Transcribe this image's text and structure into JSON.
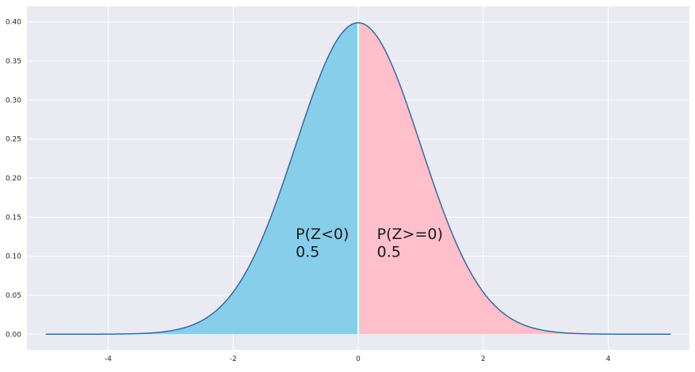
{
  "chart_data": {
    "type": "area",
    "title": "",
    "xlabel": "",
    "ylabel": "",
    "xlim": [
      -5.3,
      5.3
    ],
    "ylim": [
      -0.02,
      0.42
    ],
    "grid": true,
    "x_ticks": [
      -4,
      -2,
      0,
      2,
      4
    ],
    "x_tick_labels": [
      "-4",
      "-2",
      "0",
      "2",
      "4"
    ],
    "y_ticks": [
      0.0,
      0.05,
      0.1,
      0.15,
      0.2,
      0.25,
      0.3,
      0.35,
      0.4
    ],
    "y_tick_labels": [
      "0.00",
      "0.05",
      "0.10",
      "0.15",
      "0.20",
      "0.25",
      "0.30",
      "0.35",
      "0.40"
    ],
    "series": [
      {
        "distribution": "standard normal pdf",
        "x_range": [
          -5,
          5
        ],
        "color": "#2b6ca8"
      }
    ],
    "regions": [
      {
        "x_from": -5,
        "x_to": 0,
        "color": "#87ceeb"
      },
      {
        "x_from": 0,
        "x_to": 5,
        "color": "#ffc0cb"
      }
    ],
    "divider": {
      "x": 0,
      "color": "#ffffff"
    },
    "annotations": [
      {
        "x": -1.0,
        "y": 0.122,
        "text": "P(Z<0)"
      },
      {
        "x": -1.0,
        "y": 0.099,
        "text": "0.5"
      },
      {
        "x": 0.3,
        "y": 0.122,
        "text": "P(Z>=0)"
      },
      {
        "x": 0.3,
        "y": 0.099,
        "text": "0.5"
      }
    ],
    "colors": {
      "plot_background": "#eaeaf2",
      "grid": "#ffffff"
    }
  }
}
